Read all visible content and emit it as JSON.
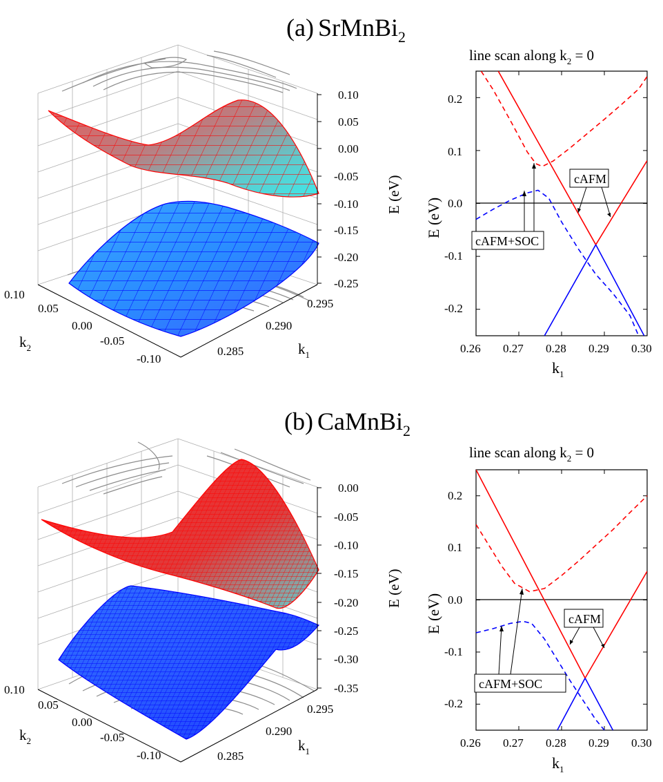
{
  "panels": [
    {
      "label": "(a)",
      "compound": "SrMnBi",
      "compound_sub": "2",
      "surface": {
        "z_axis_label": "E (eV)",
        "z_ticks": [
          "0.10",
          "0.05",
          "0.00",
          "-0.05",
          "-0.10",
          "-0.15",
          "-0.20",
          "-0.25"
        ],
        "k1_label": "k",
        "k1_sub": "1",
        "k1_ticks": [
          "0.295",
          "0.290",
          "0.285"
        ],
        "k2_label": "k",
        "k2_sub": "2",
        "k2_ticks": [
          "0.10",
          "0.05",
          "0.00",
          "-0.05",
          "-0.10"
        ]
      },
      "line_scan": {
        "title_prefix": "line scan along k",
        "title_sub": "2",
        "title_suffix": " = 0",
        "ylabel": "E (eV)",
        "xlabel": "k",
        "xlabel_sub": "1",
        "annotation_cafm": "cAFM",
        "annotation_soc": "cAFM+SOC",
        "x_tick_labels": [
          "0.26",
          "0.27",
          "0.28",
          "0.29",
          "0.30"
        ],
        "y_tick_labels": [
          "0.2",
          "0.1",
          "0.0",
          "-0.1",
          "-0.2"
        ]
      }
    },
    {
      "label": "(b)",
      "compound": "CaMnBi",
      "compound_sub": "2",
      "surface": {
        "z_axis_label": "E (eV)",
        "z_ticks": [
          "0.00",
          "-0.05",
          "-0.10",
          "-0.15",
          "-0.20",
          "-0.25",
          "-0.30",
          "-0.35"
        ],
        "k1_label": "k",
        "k1_sub": "1",
        "k1_ticks": [
          "0.295",
          "0.290",
          "0.285"
        ],
        "k2_label": "k",
        "k2_sub": "2",
        "k2_ticks": [
          "0.10",
          "0.05",
          "0.00",
          "-0.05",
          "-0.10"
        ]
      },
      "line_scan": {
        "title_prefix": "line scan along k",
        "title_sub": "2",
        "title_suffix": " = 0",
        "ylabel": "E (eV)",
        "xlabel": "k",
        "xlabel_sub": "1",
        "annotation_cafm": "cAFM",
        "annotation_soc": "cAFM+SOC",
        "x_tick_labels": [
          "0.26",
          "0.27",
          "0.28",
          "0.29",
          "0.30"
        ],
        "y_tick_labels": [
          "0.2",
          "0.1",
          "0.0",
          "-0.1",
          "-0.2"
        ]
      }
    }
  ],
  "colors": {
    "conduction": "#ff0000",
    "valence": "#0000ff",
    "grid": "#999999",
    "axis": "#000000"
  },
  "chart_data": [
    {
      "type": "line",
      "title": "line scan along k2 = 0",
      "panel": "(a) SrMnBi2",
      "xlabel": "k1",
      "ylabel": "E (eV)",
      "xlim": [
        0.26,
        0.3
      ],
      "ylim": [
        -0.25,
        0.25
      ],
      "xticks": [
        0.26,
        0.27,
        0.28,
        0.29,
        0.3
      ],
      "yticks": [
        -0.2,
        -0.1,
        0.0,
        0.1,
        0.2
      ],
      "reference_line": 0.0,
      "series": [
        {
          "name": "cAFM conduction (falling)",
          "style": "solid",
          "color": "#ff0000",
          "x": [
            0.2652,
            0.288
          ],
          "y": [
            0.25,
            -0.078
          ]
        },
        {
          "name": "cAFM conduction (rising)",
          "style": "solid",
          "color": "#ff0000",
          "x": [
            0.288,
            0.3
          ],
          "y": [
            -0.078,
            0.081
          ]
        },
        {
          "name": "cAFM valence (rising)",
          "style": "solid",
          "color": "#0000ff",
          "x": [
            0.276,
            0.288
          ],
          "y": [
            -0.25,
            -0.078
          ]
        },
        {
          "name": "cAFM valence (falling)",
          "style": "solid",
          "color": "#0000ff",
          "x": [
            0.288,
            0.2993
          ],
          "y": [
            -0.078,
            -0.25
          ]
        },
        {
          "name": "cAFM+SOC conduction",
          "style": "dashed",
          "color": "#ff0000",
          "x": [
            0.2612,
            0.264,
            0.268,
            0.272,
            0.274,
            0.2755,
            0.278,
            0.282,
            0.286,
            0.29,
            0.294,
            0.298,
            0.3
          ],
          "y": [
            0.25,
            0.215,
            0.157,
            0.097,
            0.075,
            0.07,
            0.08,
            0.105,
            0.132,
            0.159,
            0.187,
            0.216,
            0.24
          ]
        },
        {
          "name": "cAFM+SOC valence",
          "style": "dashed",
          "color": "#0000ff",
          "x": [
            0.26,
            0.264,
            0.268,
            0.272,
            0.2745,
            0.277,
            0.28,
            0.284,
            0.288,
            0.292,
            0.296,
            0.298
          ],
          "y": [
            -0.03,
            -0.011,
            0.006,
            0.02,
            0.025,
            0.01,
            -0.035,
            -0.087,
            -0.134,
            -0.17,
            -0.212,
            -0.25
          ]
        }
      ],
      "annotations": [
        "cAFM",
        "cAFM+SOC"
      ]
    },
    {
      "type": "line",
      "title": "line scan along k2 = 0",
      "panel": "(b) CaMnBi2",
      "xlabel": "k1",
      "ylabel": "E (eV)",
      "xlim": [
        0.26,
        0.3
      ],
      "ylim": [
        -0.25,
        0.25
      ],
      "xticks": [
        0.26,
        0.27,
        0.28,
        0.29,
        0.3
      ],
      "yticks": [
        -0.2,
        -0.1,
        0.0,
        0.1,
        0.2
      ],
      "reference_line": 0.0,
      "series": [
        {
          "name": "cAFM conduction (falling)",
          "style": "solid",
          "color": "#ff0000",
          "x": [
            0.26,
            0.2855
          ],
          "y": [
            0.25,
            -0.15
          ]
        },
        {
          "name": "cAFM conduction (rising)",
          "style": "solid",
          "color": "#ff0000",
          "x": [
            0.2855,
            0.3
          ],
          "y": [
            -0.15,
            0.055
          ]
        },
        {
          "name": "cAFM valence (rising)",
          "style": "solid",
          "color": "#0000ff",
          "x": [
            0.279,
            0.2855
          ],
          "y": [
            -0.25,
            -0.15
          ]
        },
        {
          "name": "cAFM valence (falling)",
          "style": "solid",
          "color": "#0000ff",
          "x": [
            0.2855,
            0.292
          ],
          "y": [
            -0.15,
            -0.25
          ]
        },
        {
          "name": "cAFM+SOC conduction",
          "style": "dashed",
          "color": "#ff0000",
          "x": [
            0.26,
            0.263,
            0.266,
            0.269,
            0.2725,
            0.276,
            0.28,
            0.284,
            0.288,
            0.292,
            0.296,
            0.3
          ],
          "y": [
            0.145,
            0.105,
            0.065,
            0.032,
            0.016,
            0.022,
            0.047,
            0.075,
            0.105,
            0.135,
            0.168,
            0.2
          ]
        },
        {
          "name": "cAFM+SOC valence",
          "style": "dashed",
          "color": "#0000ff",
          "x": [
            0.26,
            0.264,
            0.268,
            0.271,
            0.273,
            0.276,
            0.279,
            0.282,
            0.286,
            0.288,
            0.29
          ],
          "y": [
            -0.063,
            -0.055,
            -0.045,
            -0.041,
            -0.045,
            -0.075,
            -0.115,
            -0.155,
            -0.205,
            -0.23,
            -0.25
          ]
        }
      ],
      "annotations": [
        "cAFM",
        "cAFM+SOC"
      ]
    }
  ]
}
